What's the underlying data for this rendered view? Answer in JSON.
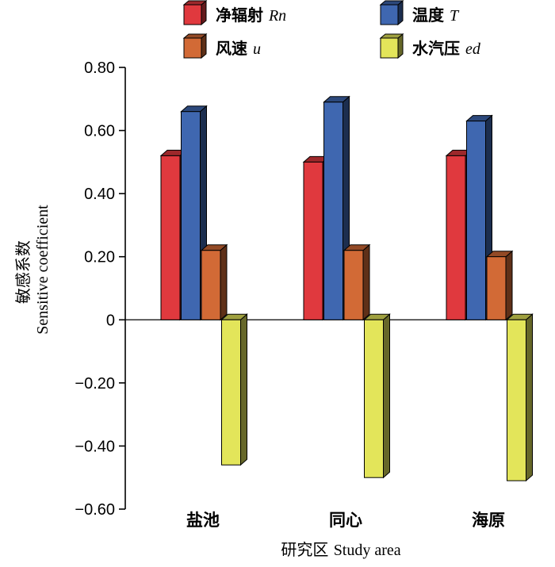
{
  "chart_data": {
    "type": "bar",
    "categories": [
      "盐池",
      "同心",
      "海原"
    ],
    "series": [
      {
        "name": "净辐射",
        "symbol": "Rn",
        "color": "#e0393e",
        "values": [
          0.52,
          0.5,
          0.52
        ]
      },
      {
        "name": "温度",
        "symbol": "T",
        "color": "#3f67b0",
        "values": [
          0.66,
          0.69,
          0.63
        ]
      },
      {
        "name": "风速",
        "symbol": "u",
        "color": "#d26a36",
        "values": [
          0.22,
          0.22,
          0.2
        ]
      },
      {
        "name": "水汽压",
        "symbol": "ed",
        "color": "#e3e55a",
        "values": [
          -0.46,
          -0.5,
          -0.51
        ]
      }
    ],
    "ylim": [
      -0.6,
      0.8
    ],
    "yticks": [
      "0.80",
      "0.60",
      "0.40",
      "0.20",
      "0",
      "−0.20",
      "−0.40",
      "−0.60"
    ],
    "ytick_values": [
      0.8,
      0.6,
      0.4,
      0.2,
      0,
      -0.2,
      -0.4,
      -0.6
    ],
    "ylabel_cn": "敏感系数",
    "ylabel_en": "Sensitive coefficient",
    "xlabel_cn": "研究区",
    "xlabel_en": "Study area",
    "legend_position": "top",
    "grid": false,
    "style": "3d-bars"
  }
}
